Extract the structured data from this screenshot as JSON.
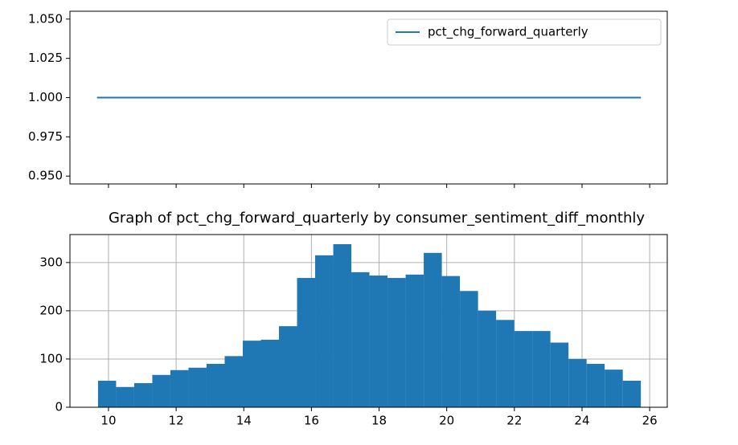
{
  "chart_data": [
    {
      "type": "line",
      "x": [
        9.66,
        25.74
      ],
      "series": [
        {
          "name": "pct_chg_forward_quarterly",
          "color": "#1f77b4",
          "values": [
            1.0,
            1.0
          ]
        }
      ],
      "xlim": [
        8.86,
        26.52
      ],
      "xticks": [
        10,
        12,
        14,
        16,
        18,
        20,
        22,
        24,
        26
      ],
      "ylim": [
        0.945,
        1.055
      ],
      "yticks": [
        {
          "value": 0.95,
          "label": "0.950"
        },
        {
          "value": 0.975,
          "label": "0.975"
        },
        {
          "value": 1.0,
          "label": "1.000"
        },
        {
          "value": 1.025,
          "label": "1.025"
        },
        {
          "value": 1.05,
          "label": "1.050"
        }
      ],
      "grid": false,
      "legend": "upper right"
    },
    {
      "type": "histogram",
      "title": "Graph of pct_chg_forward_quarterly by consumer_sentiment_diff_monthly",
      "bins": [
        9.69,
        10.225,
        10.76,
        11.295,
        11.83,
        12.365,
        12.9,
        13.435,
        13.97,
        14.505,
        15.04,
        15.575,
        16.11,
        16.645,
        17.18,
        17.715,
        18.25,
        18.785,
        19.32,
        19.855,
        20.39,
        20.925,
        21.46,
        21.995,
        22.53,
        23.065,
        23.6,
        24.135,
        24.67,
        25.205,
        25.74
      ],
      "values": [
        55,
        42,
        50,
        67,
        77,
        82,
        90,
        106,
        138,
        140,
        168,
        268,
        315,
        338,
        280,
        273,
        268,
        275,
        320,
        272,
        241,
        200,
        181,
        158,
        158,
        134,
        100,
        90,
        78,
        55
      ],
      "color": "#1f77b4",
      "xlim": [
        8.86,
        26.52
      ],
      "xticks": [
        10,
        12,
        14,
        16,
        18,
        20,
        22,
        24,
        26
      ],
      "ylim": [
        0,
        358
      ],
      "yticks": [
        0,
        100,
        200,
        300
      ],
      "grid": true
    }
  ]
}
